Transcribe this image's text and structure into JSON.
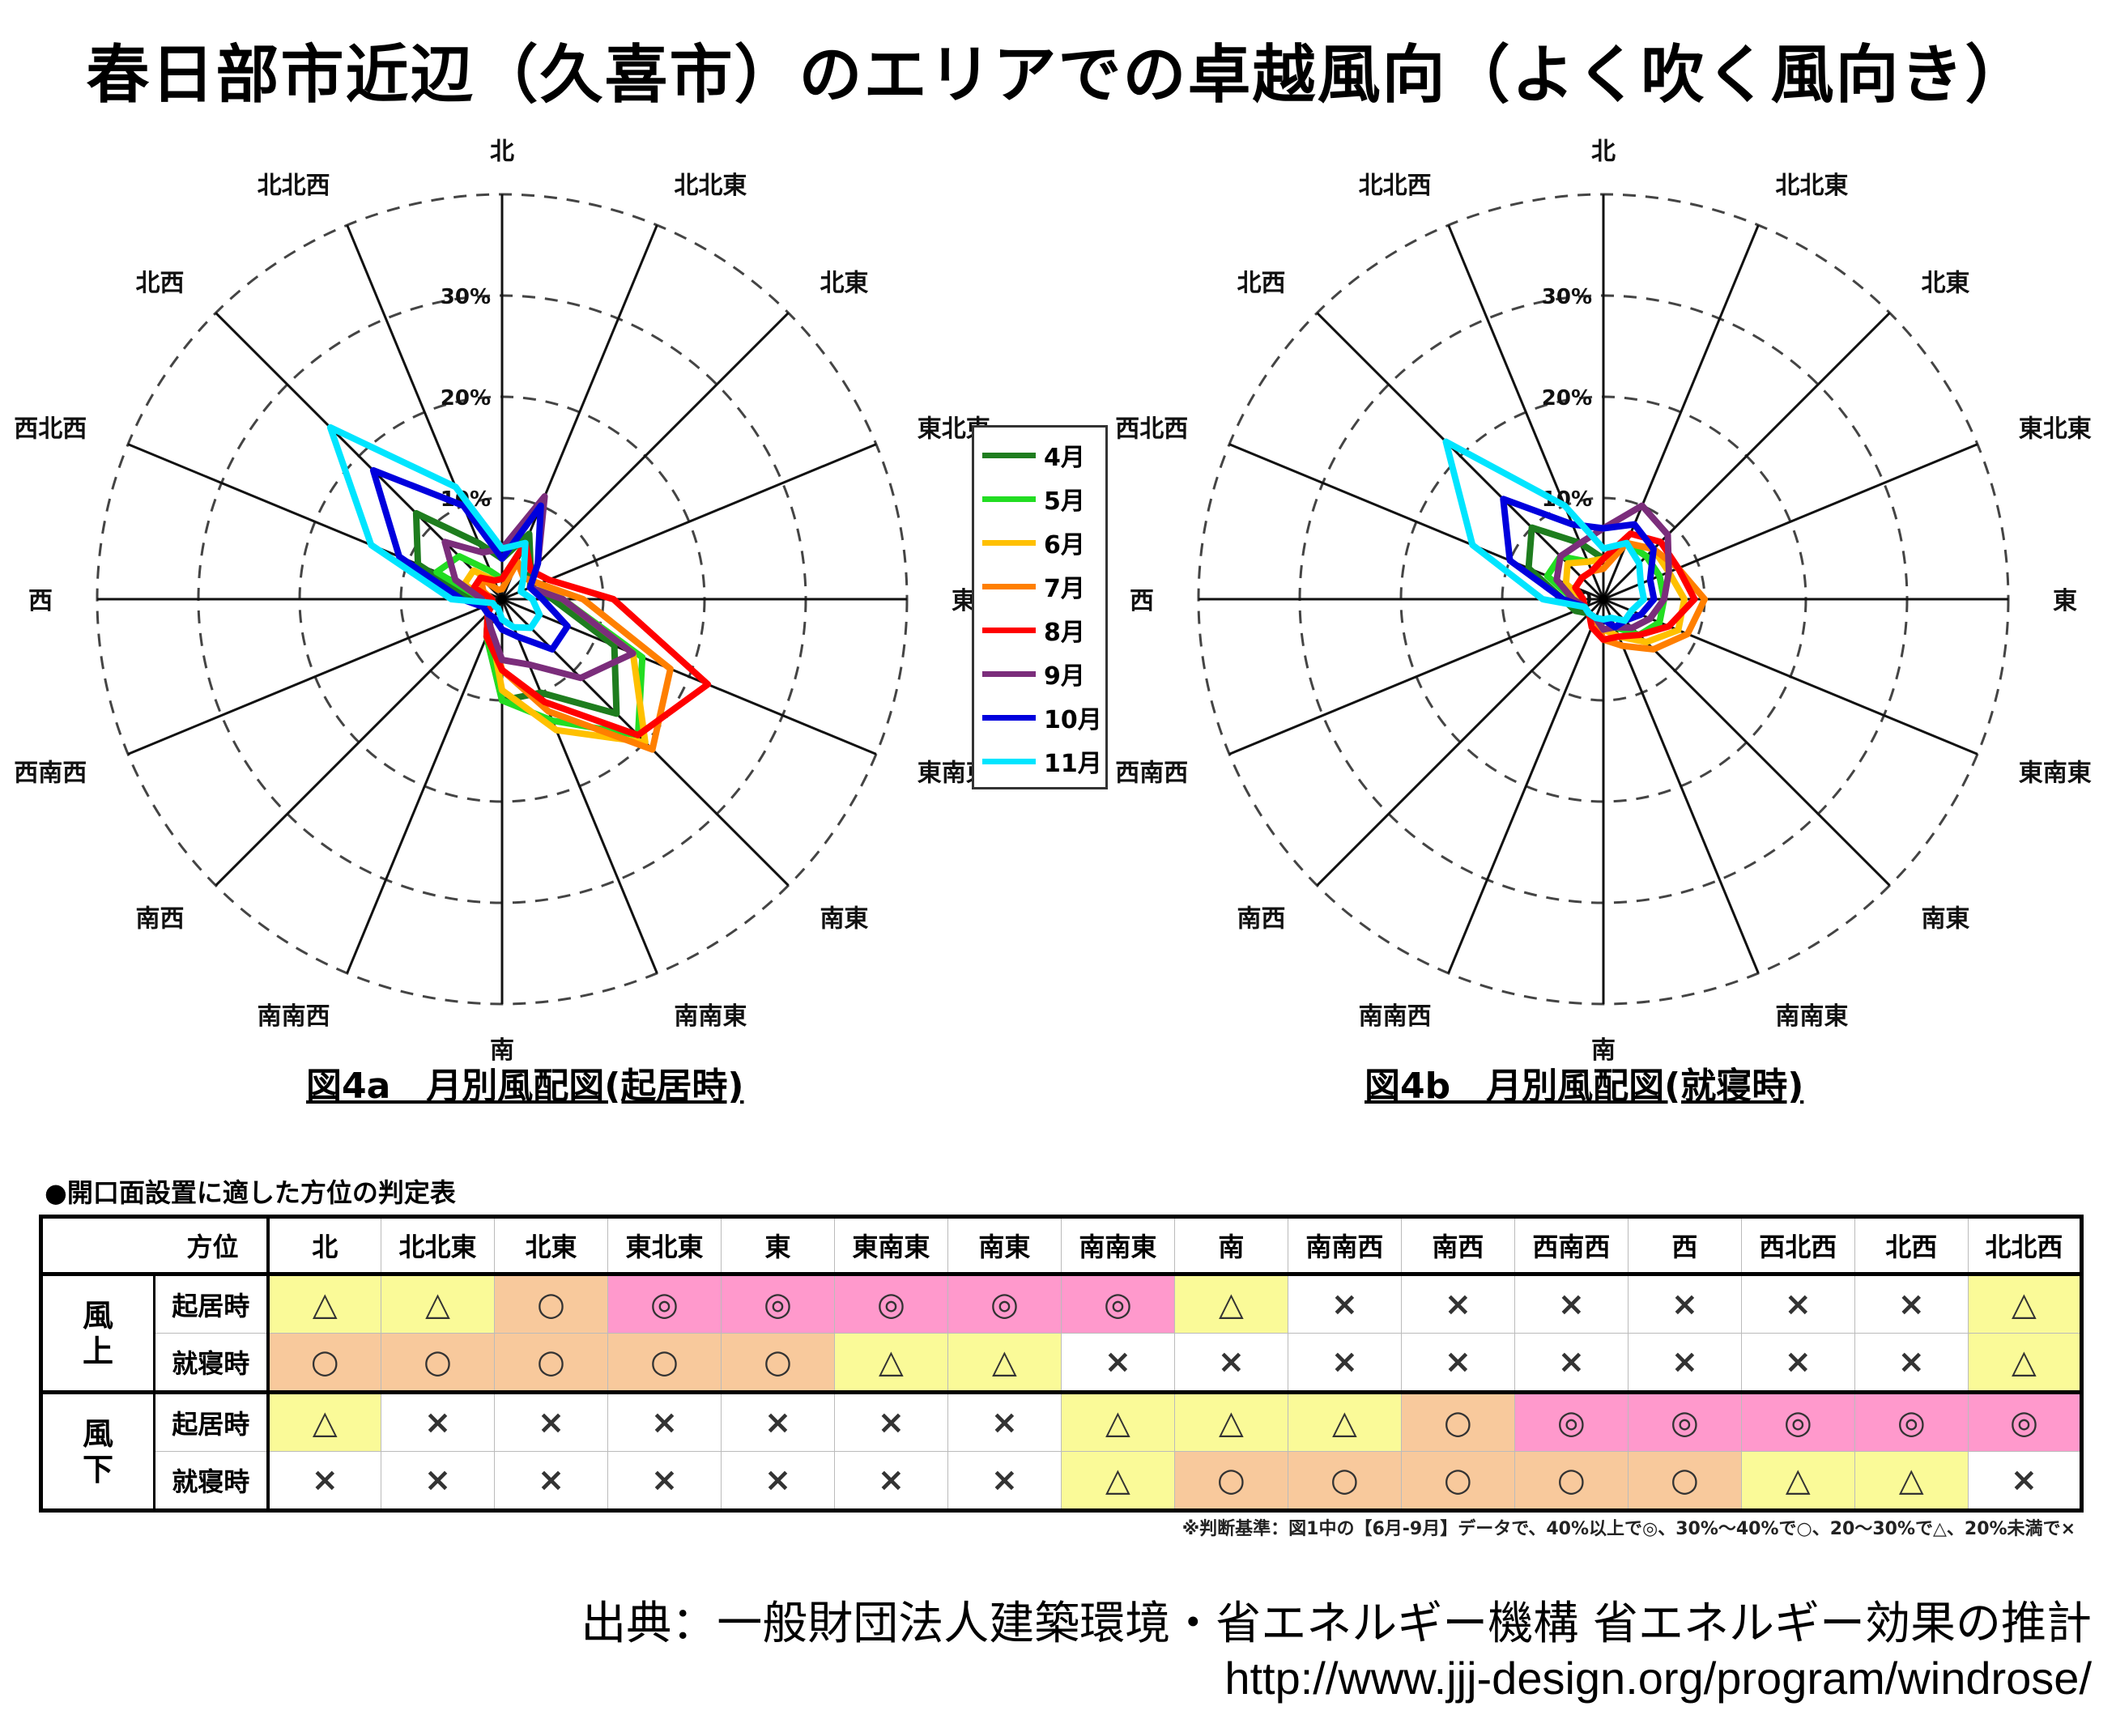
{
  "title": "春日部市近辺（久喜市）のエリアでの卓越風向（よく吹く風向き）",
  "chart_data": [
    {
      "type": "radar",
      "caption": "図4a　月別風配図(起居時)",
      "directions": [
        "北",
        "北北東",
        "北東",
        "東北東",
        "東",
        "東南東",
        "南東",
        "南南東",
        "南",
        "南南西",
        "南西",
        "西南西",
        "西",
        "西北西",
        "北西",
        "北北西"
      ],
      "rings": [
        "10%",
        "20%",
        "30%"
      ],
      "rmax": 40,
      "series": [
        {
          "name": "4月",
          "color": "#1e7d1e",
          "values": [
            4,
            7,
            4,
            3,
            5,
            12,
            16,
            10,
            10,
            4,
            2,
            2,
            3,
            9,
            12,
            6
          ]
        },
        {
          "name": "5月",
          "color": "#22dd22",
          "values": [
            2,
            6,
            3,
            4,
            6,
            15,
            19,
            13,
            10,
            4,
            2,
            2,
            2,
            7,
            6,
            3
          ]
        },
        {
          "name": "6月",
          "color": "#ffc000",
          "values": [
            2,
            4,
            3,
            4,
            6,
            14,
            20,
            14,
            9,
            3,
            2,
            1,
            2,
            4,
            4,
            2
          ]
        },
        {
          "name": "7月",
          "color": "#ff7f00",
          "values": [
            1,
            4,
            3,
            4,
            8,
            18,
            21,
            12,
            7,
            3,
            2,
            1,
            1,
            2,
            3,
            1
          ]
        },
        {
          "name": "8月",
          "color": "#ff0000",
          "values": [
            2,
            6,
            4,
            5,
            11,
            22,
            19,
            11,
            7,
            4,
            2,
            1,
            1,
            3,
            3,
            2
          ]
        },
        {
          "name": "9月",
          "color": "#7b2d7b",
          "values": [
            5,
            11,
            5,
            3,
            6,
            14,
            11,
            7,
            6,
            3,
            2,
            2,
            2,
            5,
            8,
            5
          ]
        },
        {
          "name": "10月",
          "color": "#0000dd",
          "values": [
            4,
            10,
            5,
            3,
            4,
            7,
            7,
            4,
            3,
            2,
            2,
            2,
            4,
            11,
            18,
            10
          ]
        },
        {
          "name": "11月",
          "color": "#00e5ff",
          "values": [
            5,
            6,
            3,
            2,
            3,
            4,
            4,
            3,
            2,
            1,
            1,
            1,
            5,
            14,
            24,
            12
          ]
        }
      ]
    },
    {
      "type": "radar",
      "caption": "図4b　月別風配図(就寝時)",
      "directions": [
        "北",
        "北北東",
        "北東",
        "東北東",
        "東",
        "東南東",
        "南東",
        "南南東",
        "南",
        "南南西",
        "南西",
        "西南西",
        "西",
        "西北西",
        "北西",
        "北北西"
      ],
      "rings": [
        "10%",
        "20%",
        "30%"
      ],
      "rmax": 40,
      "series": [
        {
          "name": "4月",
          "color": "#1e7d1e",
          "values": [
            4,
            6,
            6,
            6,
            6,
            5,
            4,
            3,
            3,
            2,
            2,
            3,
            4,
            8,
            10,
            6
          ]
        },
        {
          "name": "5月",
          "color": "#22dd22",
          "values": [
            4,
            6,
            6,
            6,
            6,
            6,
            5,
            3,
            3,
            2,
            2,
            2,
            3,
            6,
            6,
            4
          ]
        },
        {
          "name": "6月",
          "color": "#ffc000",
          "values": [
            4,
            6,
            7,
            7,
            8,
            8,
            6,
            4,
            3,
            2,
            2,
            2,
            2,
            4,
            5,
            4
          ]
        },
        {
          "name": "7月",
          "color": "#ff7f00",
          "values": [
            3,
            6,
            7,
            8,
            10,
            9,
            7,
            5,
            4,
            2,
            2,
            2,
            2,
            3,
            3,
            3
          ]
        },
        {
          "name": "8月",
          "color": "#ff0000",
          "values": [
            4,
            7,
            8,
            8,
            9,
            7,
            5,
            4,
            4,
            3,
            2,
            2,
            2,
            3,
            3,
            3
          ]
        },
        {
          "name": "9月",
          "color": "#7b2d7b",
          "values": [
            7,
            10,
            9,
            7,
            6,
            5,
            4,
            3,
            3,
            2,
            2,
            2,
            3,
            5,
            6,
            6
          ]
        },
        {
          "name": "10月",
          "color": "#0000dd",
          "values": [
            7,
            8,
            7,
            5,
            5,
            4,
            3,
            3,
            2,
            2,
            2,
            2,
            4,
            10,
            14,
            8
          ]
        },
        {
          "name": "11月",
          "color": "#00e5ff",
          "values": [
            5,
            6,
            5,
            4,
            4,
            3,
            3,
            2,
            2,
            2,
            2,
            2,
            6,
            14,
            22,
            10
          ]
        }
      ]
    }
  ],
  "table": {
    "title": "●開口面設置に適した方位の判定表",
    "header_label": "方位",
    "columns": [
      "北",
      "北北東",
      "北東",
      "東北東",
      "東",
      "東南東",
      "南東",
      "南南東",
      "南",
      "南南西",
      "南西",
      "西南西",
      "西",
      "西北西",
      "北西",
      "北北西"
    ],
    "groups": [
      {
        "label": "風\n上",
        "rows": [
          {
            "label": "起居時",
            "cells": [
              "△",
              "△",
              "○",
              "◎",
              "◎",
              "◎",
              "◎",
              "◎",
              "△",
              "×",
              "×",
              "×",
              "×",
              "×",
              "×",
              "△"
            ]
          },
          {
            "label": "就寝時",
            "cells": [
              "○",
              "○",
              "○",
              "○",
              "○",
              "△",
              "△",
              "×",
              "×",
              "×",
              "×",
              "×",
              "×",
              "×",
              "×",
              "△"
            ]
          }
        ]
      },
      {
        "label": "風\n下",
        "rows": [
          {
            "label": "起居時",
            "cells": [
              "△",
              "×",
              "×",
              "×",
              "×",
              "×",
              "×",
              "△",
              "△",
              "△",
              "○",
              "◎",
              "◎",
              "◎",
              "◎",
              "◎"
            ]
          },
          {
            "label": "就寝時",
            "cells": [
              "×",
              "×",
              "×",
              "×",
              "×",
              "×",
              "×",
              "△",
              "○",
              "○",
              "○",
              "○",
              "○",
              "△",
              "△",
              "×"
            ]
          }
        ]
      }
    ],
    "symbol_colors": {
      "◎": "#ff99cc",
      "○": "#f8c99c",
      "△": "#fafa98",
      "×": "#ffffff"
    },
    "note": "※判断基準：図1中の【6月-9月】データで、40%以上で◎、30%～40%で○、20～30%で△、20%未満で×"
  },
  "source": {
    "label": "出典：一般財団法人建築環境・省エネルギー機構 省エネルギー効果の推計",
    "url": "http://www.jjj-design.org/program/windrose/"
  }
}
